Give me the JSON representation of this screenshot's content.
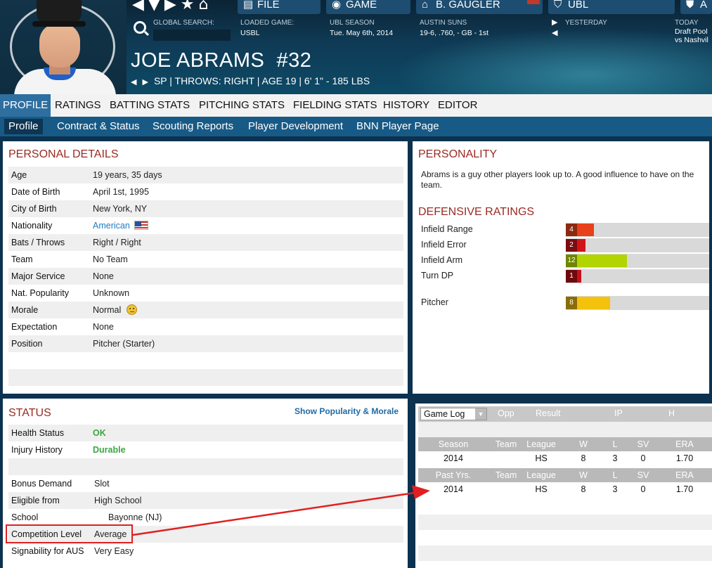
{
  "header": {
    "menus": [
      {
        "label": "FILE",
        "icon": "file-icon"
      },
      {
        "label": "GAME",
        "icon": "globe-icon"
      },
      {
        "label": "B. GAUGLER",
        "icon": "home-icon"
      },
      {
        "label": "UBL",
        "icon": "league-icon"
      },
      {
        "label": "A",
        "icon": "team-logo-icon"
      }
    ],
    "global_search_label": "GLOBAL SEARCH:",
    "loaded_game_label": "LOADED GAME:",
    "loaded_game_value": "USBL",
    "season_label": "UBL SEASON",
    "season_value": "Tue. May 6th, 2014",
    "team_label": "AUSTIN SUNS",
    "team_value": "19-6, .760, - GB - 1st",
    "yesterday_label": "YESTERDAY",
    "today_label": "TODAY",
    "today_line1": "Draft Pool",
    "today_line2": "vs Nashvil"
  },
  "player": {
    "name": "JOE ABRAMS",
    "number": "#32",
    "subline": "SP | THROWS: RIGHT | AGE 19 | 6' 1\" - 185 LBS"
  },
  "tabs": [
    "PROFILE",
    "RATINGS",
    "BATTING STATS",
    "PITCHING STATS",
    "FIELDING STATS",
    "HISTORY",
    "EDITOR"
  ],
  "subtabs": [
    "Profile",
    "Contract & Status",
    "Scouting Reports",
    "Player Development",
    "BNN Player Page"
  ],
  "personal": {
    "title": "PERSONAL DETAILS",
    "rows": [
      {
        "label": "Age",
        "value": "19 years, 35 days"
      },
      {
        "label": "Date of Birth",
        "value": "April 1st, 1995"
      },
      {
        "label": "City of Birth",
        "value": "New York, NY"
      },
      {
        "label": "Nationality",
        "value": "American"
      },
      {
        "label": "Bats / Throws",
        "value": "Right / Right"
      },
      {
        "label": "Team",
        "value": "No Team"
      },
      {
        "label": "Major Service",
        "value": "None"
      },
      {
        "label": "Nat. Popularity",
        "value": "Unknown"
      },
      {
        "label": "Morale",
        "value": "Normal"
      },
      {
        "label": "Expectation",
        "value": "None"
      },
      {
        "label": "Position",
        "value": "Pitcher (Starter)"
      }
    ]
  },
  "personality": {
    "title": "PERSONALITY",
    "text": "Abrams is a guy other players look up to. A good influence to have on the team."
  },
  "defense": {
    "title": "DEFENSIVE RATINGS",
    "scale_max": 20,
    "ratings": [
      {
        "label": "Infield Range",
        "value": 4,
        "color": "#e8401a",
        "dark": "#8a2a10"
      },
      {
        "label": "Infield Error",
        "value": 2,
        "color": "#d0151a",
        "dark": "#7a0d10"
      },
      {
        "label": "Infield Arm",
        "value": 12,
        "color": "#b2d400",
        "dark": "#6f8600"
      },
      {
        "label": "Turn DP",
        "value": 1,
        "color": "#c5121a",
        "dark": "#6d0a0e"
      }
    ],
    "pitcher": {
      "label": "Pitcher",
      "value": 8,
      "color": "#f4c20d",
      "dark": "#8a6d07"
    }
  },
  "status": {
    "title": "STATUS",
    "link": "Show Popularity & Morale",
    "rows": [
      {
        "label": "Health Status",
        "value": "OK"
      },
      {
        "label": "Injury History",
        "value": "Durable"
      }
    ],
    "rows2": [
      {
        "label": "Bonus Demand",
        "value": "Slot"
      },
      {
        "label": "Eligible from",
        "value": "High School"
      },
      {
        "label": "School",
        "value": "Bayonne (NJ)"
      },
      {
        "label": "Competition Level",
        "value": "Average"
      },
      {
        "label": "Signability for AUS",
        "value": "Very Easy"
      }
    ]
  },
  "gamelog": {
    "select": "Game Log",
    "cols": [
      "Opp",
      "Result",
      "IP",
      "H"
    ],
    "stat_cols": [
      "Team",
      "League",
      "W",
      "L",
      "SV",
      "ERA"
    ],
    "season_label": "Season",
    "season_row": [
      "2014",
      "",
      "HS",
      "8",
      "3",
      "0",
      "1.70"
    ],
    "past_label": "Past Yrs.",
    "past_row": [
      "2014",
      "",
      "HS",
      "8",
      "3",
      "0",
      "1.70"
    ]
  }
}
